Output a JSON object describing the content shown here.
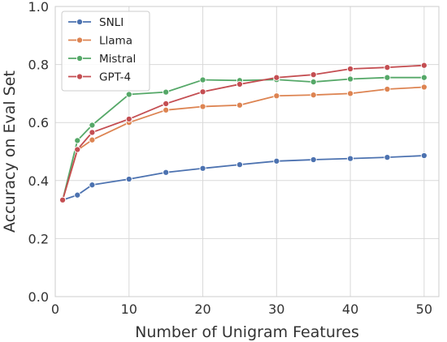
{
  "chart_data": {
    "type": "line",
    "title": "",
    "xlabel": "Number of Unigram Features",
    "ylabel": "Accuracy on Eval Set",
    "xlim": [
      0,
      52
    ],
    "ylim": [
      0.0,
      1.0
    ],
    "xticks": [
      0,
      10,
      20,
      30,
      40,
      50
    ],
    "xtick_labels": [
      "0",
      "10",
      "20",
      "30",
      "40",
      "50"
    ],
    "yticks": [
      0.0,
      0.2,
      0.4,
      0.6,
      0.8,
      1.0
    ],
    "ytick_labels": [
      "0.0",
      "0.2",
      "0.4",
      "0.6",
      "0.8",
      "1.0"
    ],
    "grid": true,
    "legend_position": "top-left",
    "x": [
      1,
      3,
      5,
      10,
      15,
      20,
      25,
      30,
      35,
      40,
      45,
      50
    ],
    "series": [
      {
        "name": "SNLI",
        "color": "#4c72b0",
        "values": [
          0.333,
          0.35,
          0.385,
          0.405,
          0.428,
          0.442,
          0.455,
          0.467,
          0.472,
          0.476,
          0.48,
          0.486
        ]
      },
      {
        "name": "Llama",
        "color": "#dd8452",
        "values": [
          0.333,
          0.505,
          0.54,
          0.6,
          0.643,
          0.655,
          0.66,
          0.692,
          0.695,
          0.7,
          0.715,
          0.722
        ]
      },
      {
        "name": "Mistral",
        "color": "#55a868",
        "values": [
          0.333,
          0.538,
          0.591,
          0.697,
          0.705,
          0.747,
          0.745,
          0.748,
          0.74,
          0.75,
          0.755,
          0.755
        ]
      },
      {
        "name": "GPT-4",
        "color": "#c44e52",
        "values": [
          0.333,
          0.507,
          0.566,
          0.612,
          0.665,
          0.706,
          0.732,
          0.755,
          0.765,
          0.785,
          0.79,
          0.797
        ]
      }
    ]
  }
}
